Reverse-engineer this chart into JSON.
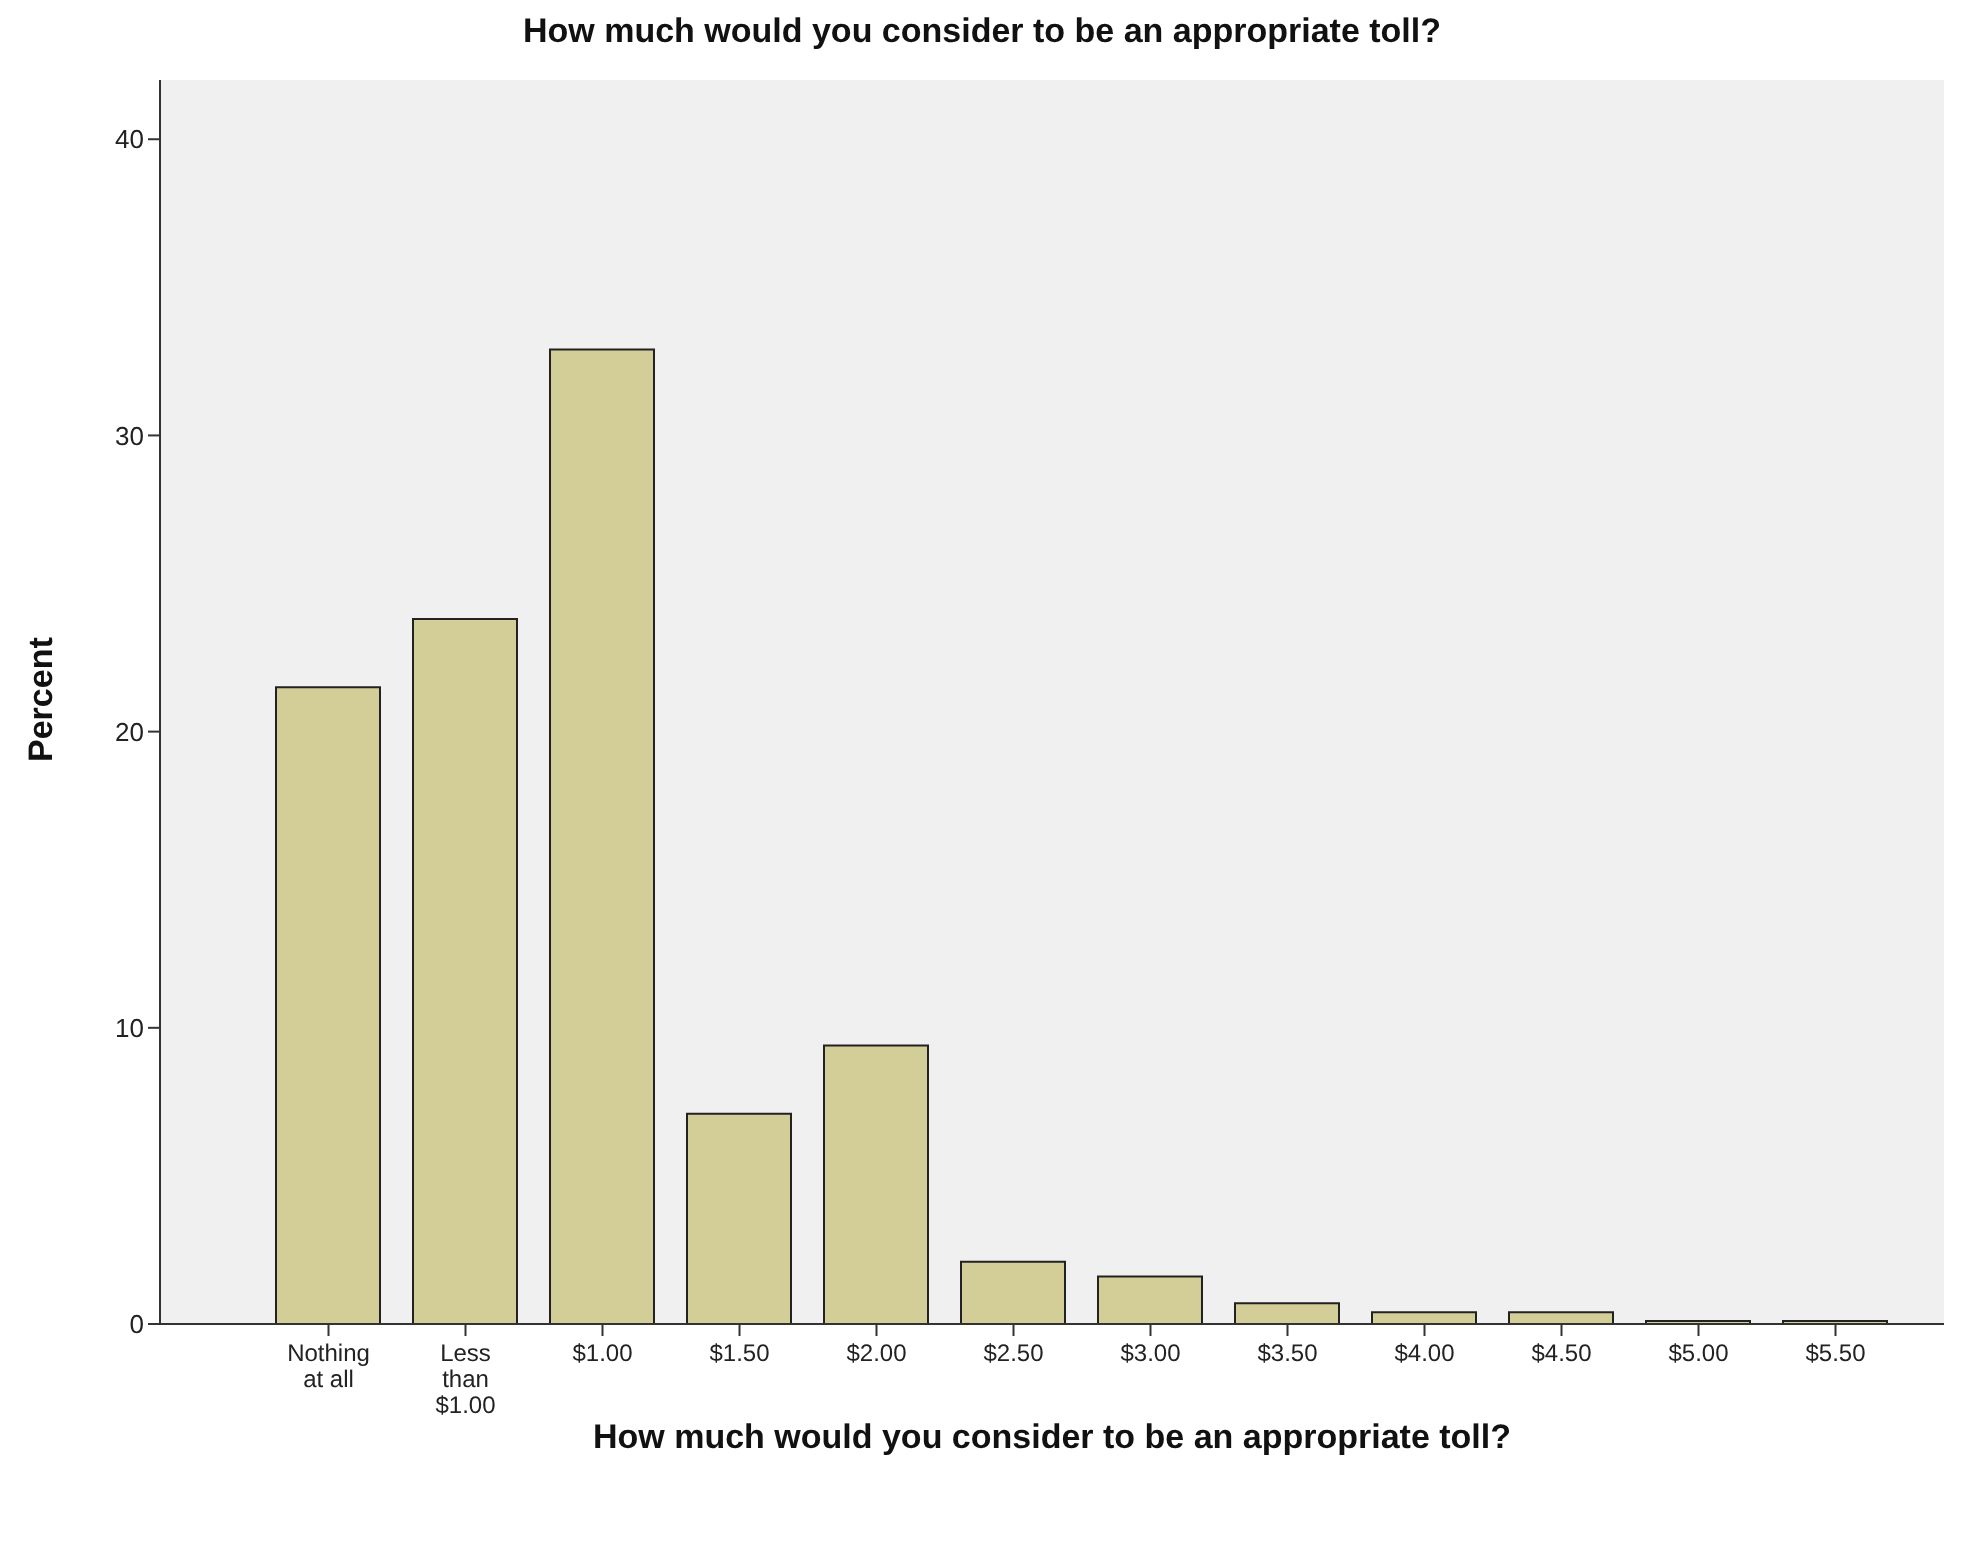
{
  "chart_data": {
    "type": "bar",
    "title": "How much would you consider to be an appropriate toll?",
    "xlabel": "How much would you consider to be an appropriate toll?",
    "ylabel": "Percent",
    "categories": [
      "Nothing at all",
      "Less than $1.00",
      "$1.00",
      "$1.50",
      "$2.00",
      "$2.50",
      "$3.00",
      "$3.50",
      "$4.00",
      "$4.50",
      "$5.00",
      "$5.50"
    ],
    "values": [
      21.5,
      23.8,
      32.9,
      7.1,
      9.4,
      2.1,
      1.6,
      0.7,
      0.4,
      0.4,
      0.1,
      0.1
    ],
    "color": "#d3ce97",
    "ylim": [
      0,
      42
    ],
    "yticks": [
      0,
      10,
      20,
      30,
      40
    ],
    "grid": false,
    "legend": false
  }
}
